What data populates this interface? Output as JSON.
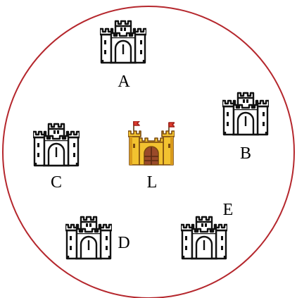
{
  "boundary": {
    "stroke": "#b5272d"
  },
  "castles": [
    {
      "id": "A",
      "label": "A",
      "icon": "castle-outline-icon"
    },
    {
      "id": "B",
      "label": "B",
      "icon": "castle-outline-icon"
    },
    {
      "id": "C",
      "label": "C",
      "icon": "castle-outline-icon"
    },
    {
      "id": "L",
      "label": "L",
      "icon": "castle-colored-icon"
    },
    {
      "id": "D",
      "label": "D",
      "icon": "castle-outline-icon"
    },
    {
      "id": "E",
      "label": "E",
      "icon": "castle-outline-icon"
    }
  ],
  "colors": {
    "outline": "#111111",
    "gold": "#f2c230",
    "gold_dark": "#d89a1c",
    "door": "#9a4a2a",
    "flag": "#e03a2c"
  }
}
